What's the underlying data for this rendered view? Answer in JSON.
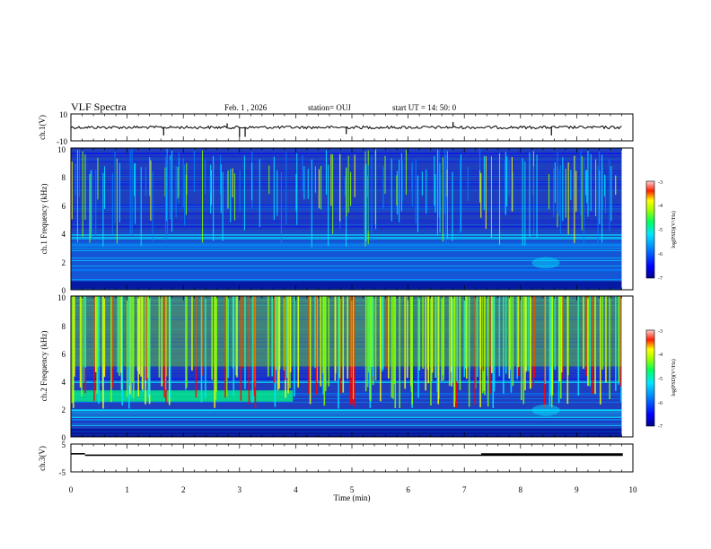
{
  "header": {
    "title": "VLF Spectra",
    "date": "Feb. 1 , 2026",
    "station": "station= OUJ",
    "start": "start UT = 14: 50: 0"
  },
  "colors": {
    "scale": [
      "#00008b",
      "#0000ff",
      "#0080ff",
      "#00e5ff",
      "#00ff80",
      "#80ff00",
      "#ffff00",
      "#ff8000",
      "#ff0000",
      "#ffc0c0"
    ],
    "background": "#1f3fbf"
  },
  "chart_data": [
    {
      "type": "line",
      "name": "ch1-waveform",
      "ylabel": "ch.1(V)",
      "ylim": [
        -10,
        10
      ],
      "yticks": [
        "10",
        "-10"
      ],
      "xlim": [
        0,
        10
      ],
      "baseline": 0,
      "spikes": [
        {
          "t": 1.65,
          "v": -6
        },
        {
          "t": 2.78,
          "v": 3
        },
        {
          "t": 3.0,
          "v": -7
        },
        {
          "t": 3.1,
          "v": -7
        },
        {
          "t": 4.9,
          "v": -5
        },
        {
          "t": 6.8,
          "v": 4
        },
        {
          "t": 8.55,
          "v": -6
        }
      ]
    },
    {
      "type": "heatmap",
      "name": "ch1-spectrogram",
      "ylabel": "ch.1 Frequency (kHz)",
      "ylim": [
        0,
        10
      ],
      "yticks": [
        "0",
        "2",
        "4",
        "6",
        "8",
        "10"
      ],
      "xlim": [
        0,
        9.8
      ],
      "colorbar": {
        "label": "log(PSD)(V²/Hz)",
        "range": [
          -7,
          -3
        ],
        "ticks": [
          "-3",
          "-4",
          "-5",
          "-6",
          "-7"
        ]
      },
      "band": {
        "low_khz": 0,
        "high_khz": 3.5,
        "level": "medium"
      },
      "burst": {
        "t_start": 8.2,
        "t_end": 8.7,
        "f_low_khz": 1.5,
        "f_high_khz": 2.3
      }
    },
    {
      "type": "heatmap",
      "name": "ch2-spectrogram",
      "ylabel": "ch.2 Frequency (kHz)",
      "ylim": [
        0,
        10
      ],
      "yticks": [
        "0",
        "2",
        "4",
        "6",
        "8",
        "10"
      ],
      "xlim": [
        0,
        9.8
      ],
      "colorbar": {
        "label": "log(PSD)(V²/Hz)",
        "range": [
          -7,
          -3
        ],
        "ticks": [
          "-3",
          "-4",
          "-5",
          "-6",
          "-7"
        ]
      },
      "band": {
        "low_khz": 2.5,
        "high_khz": 3.3,
        "t_end": 3.95,
        "level": "high"
      },
      "burst": {
        "t_start": 8.2,
        "t_end": 8.7,
        "f_low_khz": 1.5,
        "f_high_khz": 2.3
      }
    },
    {
      "type": "line",
      "name": "ch3-level",
      "ylabel": "ch.3(V)",
      "ylim": [
        -5,
        5
      ],
      "yticks": [
        "5",
        "-5"
      ],
      "xlim": [
        0,
        10
      ],
      "xlabel": "Time (min)",
      "xticks": [
        "0",
        "1",
        "2",
        "3",
        "4",
        "5",
        "6",
        "7",
        "8",
        "9",
        "10"
      ],
      "segments": [
        {
          "t0": 0.0,
          "t1": 0.25,
          "v": 1.5
        },
        {
          "t0": 0.25,
          "t1": 7.3,
          "v": 1.0
        },
        {
          "t0": 7.3,
          "t1": 9.82,
          "v": 1.2
        }
      ]
    }
  ]
}
